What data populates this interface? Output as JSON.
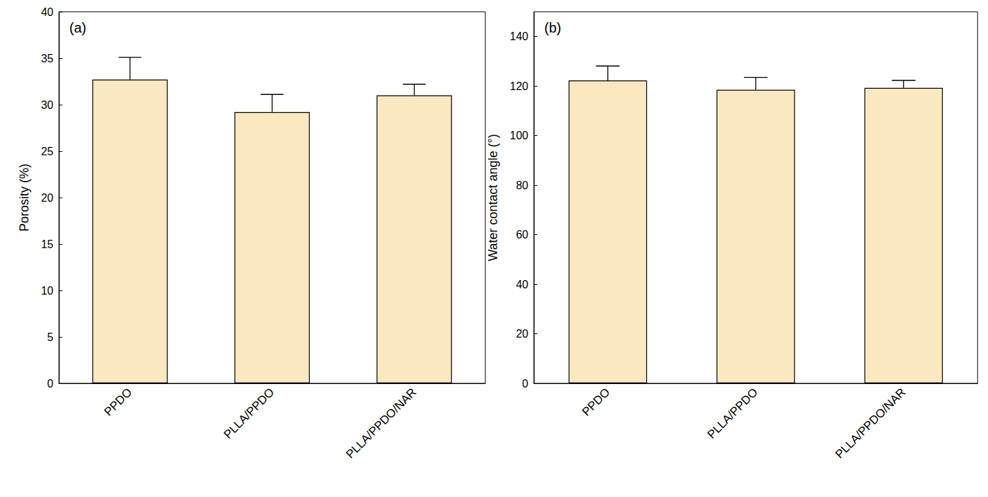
{
  "chart_data": [
    {
      "type": "bar",
      "title": "(a)",
      "y_label": "Porosity (%)",
      "categories": [
        "PPDO",
        "PLLA/PPDO",
        "PLLA/PPDO/NAR"
      ],
      "values": [
        32.7,
        29.2,
        31.0
      ],
      "errors": [
        2.4,
        1.9,
        1.2
      ],
      "color": "#fce8c0",
      "ylim": [
        0,
        40
      ],
      "yticks": [
        0,
        5,
        10,
        15,
        20,
        25,
        30,
        35,
        40
      ],
      "grid": false
    },
    {
      "type": "bar",
      "title": "(b)",
      "y_label": "Water contact angle (°)",
      "categories": [
        "PPDO",
        "PLLA/PPDO",
        "PLLA/PPDO/NAR"
      ],
      "values": [
        122.3,
        118.5,
        119.3
      ],
      "errors": [
        5.8,
        5.0,
        3.0
      ],
      "color": "#fce8c0",
      "ylim": [
        0,
        150
      ],
      "yticks": [
        0,
        20,
        40,
        60,
        80,
        100,
        120,
        140
      ],
      "grid": false
    }
  ]
}
